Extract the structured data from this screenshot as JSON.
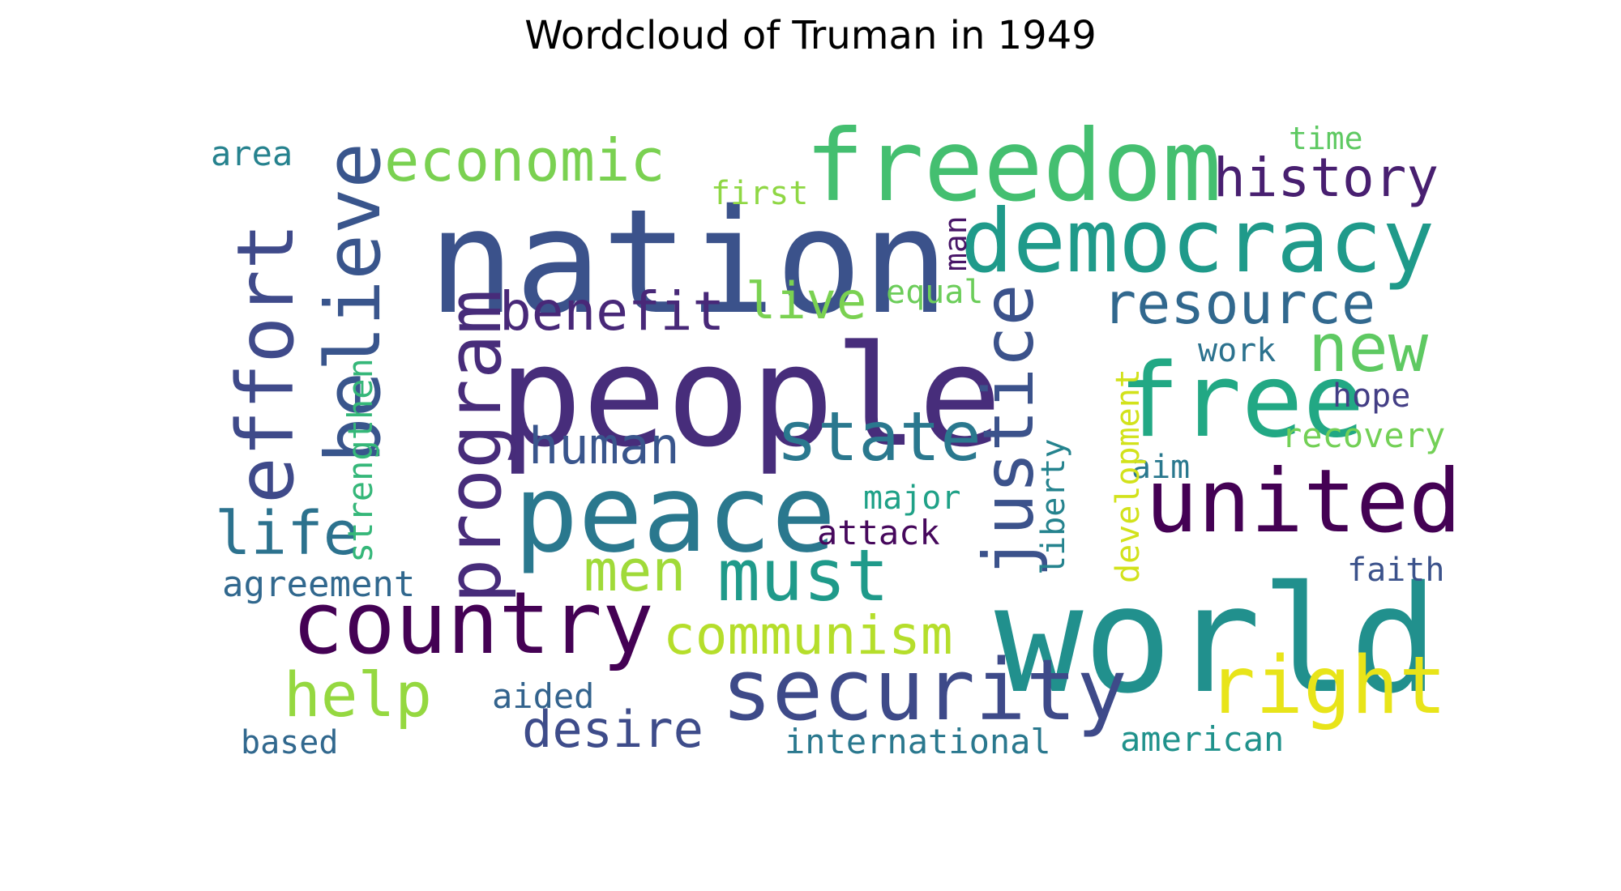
{
  "title": "Wordcloud of Truman in 1949",
  "words": [
    {
      "text": "nation",
      "color": "#3b528b"
    },
    {
      "text": "people",
      "color": "#472d7b"
    },
    {
      "text": "world",
      "color": "#21908d"
    },
    {
      "text": "freedom",
      "color": "#44bf70"
    },
    {
      "text": "peace",
      "color": "#2a788e"
    },
    {
      "text": "democracy",
      "color": "#1f9a8a"
    },
    {
      "text": "united",
      "color": "#440154"
    },
    {
      "text": "country",
      "color": "#440154"
    },
    {
      "text": "free",
      "color": "#22a884"
    },
    {
      "text": "security",
      "color": "#3e4a89"
    },
    {
      "text": "right",
      "color": "#e8e419"
    },
    {
      "text": "effort",
      "color": "#3f4a8a"
    },
    {
      "text": "believe",
      "color": "#39558c"
    },
    {
      "text": "program",
      "color": "#472c7a"
    },
    {
      "text": "justice",
      "color": "#3b528b"
    },
    {
      "text": "state",
      "color": "#2a788e"
    },
    {
      "text": "must",
      "color": "#1f9a8a"
    },
    {
      "text": "new",
      "color": "#5ec962"
    },
    {
      "text": "history",
      "color": "#481f70"
    },
    {
      "text": "economic",
      "color": "#7ad151"
    },
    {
      "text": "resource",
      "color": "#31688e"
    },
    {
      "text": "benefit",
      "color": "#482878"
    },
    {
      "text": "communism",
      "color": "#b5de2b"
    },
    {
      "text": "help",
      "color": "#95d840"
    },
    {
      "text": "life",
      "color": "#2c728e"
    },
    {
      "text": "men",
      "color": "#a0da39"
    },
    {
      "text": "human",
      "color": "#39558c"
    },
    {
      "text": "desire",
      "color": "#3e4c8a"
    },
    {
      "text": "live",
      "color": "#7ad151"
    },
    {
      "text": "area",
      "color": "#26828e"
    },
    {
      "text": "time",
      "color": "#5ec962"
    },
    {
      "text": "first",
      "color": "#8fd744"
    },
    {
      "text": "man",
      "color": "#481668"
    },
    {
      "text": "equal",
      "color": "#6ccd5a"
    },
    {
      "text": "work",
      "color": "#2c728e"
    },
    {
      "text": "hope",
      "color": "#433e85"
    },
    {
      "text": "recovery",
      "color": "#73d056"
    },
    {
      "text": "aim",
      "color": "#2a788e"
    },
    {
      "text": "major",
      "color": "#1fa187"
    },
    {
      "text": "attack",
      "color": "#46085c"
    },
    {
      "text": "strengthen",
      "color": "#35b779"
    },
    {
      "text": "liberty",
      "color": "#25838e"
    },
    {
      "text": "development",
      "color": "#d2e21b"
    },
    {
      "text": "agreement",
      "color": "#31688e"
    },
    {
      "text": "faith",
      "color": "#3b528b"
    },
    {
      "text": "aided",
      "color": "#33638d"
    },
    {
      "text": "based",
      "color": "#31688e"
    },
    {
      "text": "international",
      "color": "#2a788e"
    },
    {
      "text": "american",
      "color": "#20928c"
    }
  ]
}
